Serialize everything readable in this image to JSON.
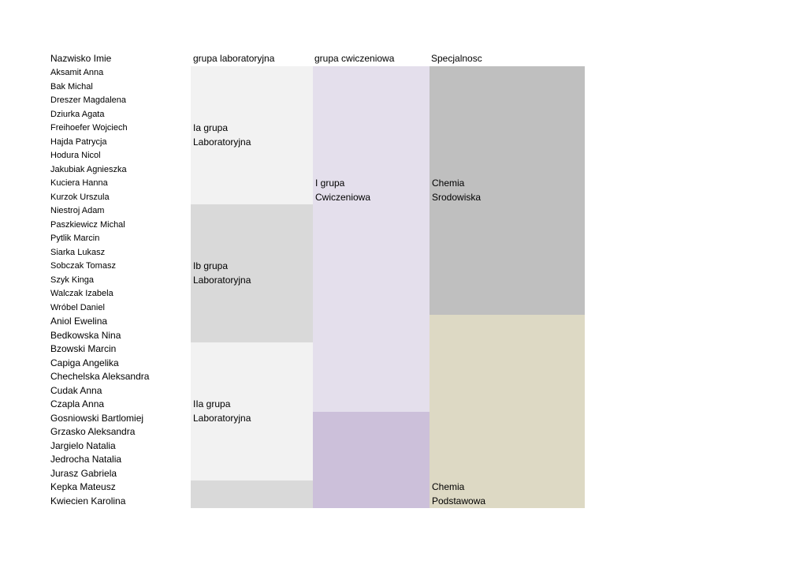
{
  "headers": {
    "name": "Nazwisko Imie",
    "lab": "grupa laboratoryjna",
    "ex": "grupa cwiczeniowa",
    "spec": "Specjalnosc"
  },
  "students": [
    {
      "name": "Aksamit Anna",
      "size": "small"
    },
    {
      "name": "Bak Michal",
      "size": "small"
    },
    {
      "name": "Dreszer Magdalena",
      "size": "small"
    },
    {
      "name": "Dziurka Agata",
      "size": "small"
    },
    {
      "name": "Freihoefer Wojciech",
      "size": "small"
    },
    {
      "name": "Hajda Patrycja",
      "size": "small"
    },
    {
      "name": "Hodura Nicol",
      "size": "small"
    },
    {
      "name": "Jakubiak Agnieszka",
      "size": "small"
    },
    {
      "name": "Kuciera Hanna",
      "size": "small"
    },
    {
      "name": "Kurzok Urszula",
      "size": "small"
    },
    {
      "name": "Niestroj Adam",
      "size": "small"
    },
    {
      "name": "Paszkiewicz Michal",
      "size": "small"
    },
    {
      "name": "Pytlik Marcin",
      "size": "small"
    },
    {
      "name": "Siarka Lukasz",
      "size": "small"
    },
    {
      "name": "Sobczak Tomasz",
      "size": "small"
    },
    {
      "name": "Szyk Kinga",
      "size": "small"
    },
    {
      "name": "Walczak Izabela",
      "size": "small"
    },
    {
      "name": "Wróbel Daniel",
      "size": "small"
    },
    {
      "name": "Aniol Ewelina",
      "size": "large"
    },
    {
      "name": "Bedkowska Nina",
      "size": "large"
    },
    {
      "name": "Bzowski Marcin",
      "size": "large"
    },
    {
      "name": "Capiga Angelika",
      "size": "large"
    },
    {
      "name": "Chechelska Aleksandra",
      "size": "large"
    },
    {
      "name": "Cudak Anna",
      "size": "large"
    },
    {
      "name": "Czapla Anna",
      "size": "large"
    },
    {
      "name": "Gosniowski Bartlomiej",
      "size": "large"
    },
    {
      "name": "Grzasko Aleksandra",
      "size": "large"
    },
    {
      "name": "Jargielo Natalia",
      "size": "large"
    },
    {
      "name": "Jedrocha Natalia",
      "size": "large"
    },
    {
      "name": "Jurasz Gabriela",
      "size": "large"
    },
    {
      "name": "Kepka Mateusz",
      "size": "large"
    },
    {
      "name": "Kwiecien Karolina",
      "size": "large"
    }
  ],
  "lab_groups": [
    {
      "label": "Ia grupa\nLaboratoryjna",
      "start_row": 0,
      "rows": 10,
      "label_row": 4,
      "color": "#f2f2f2"
    },
    {
      "label": "Ib grupa\nLaboratoryjna",
      "start_row": 10,
      "rows": 10,
      "label_row": 14,
      "color": "#d9d9d9"
    },
    {
      "label": "IIa grupa\nLaboratoryjna",
      "start_row": 20,
      "rows": 10,
      "label_row": 24,
      "color": "#f2f2f2"
    },
    {
      "label": "",
      "start_row": 30,
      "rows": 2,
      "label_row": 30,
      "color": "#d9d9d9"
    }
  ],
  "exercise_groups": [
    {
      "label": "I grupa\nCwiczeniowa",
      "start_row": 0,
      "rows": 25,
      "label_row": 8,
      "color": "#e4dfec"
    },
    {
      "label": "",
      "start_row": 25,
      "rows": 7,
      "label_row": 25,
      "color": "#ccc0da"
    }
  ],
  "specializations": [
    {
      "label": "Chemia\nSrodowiska",
      "start_row": 0,
      "rows": 18,
      "label_row": 8,
      "color": "#bfbfbf"
    },
    {
      "label": "Chemia\nPodstawowa",
      "start_row": 18,
      "rows": 14,
      "label_row": 30,
      "color": "#ddd9c4"
    }
  ]
}
